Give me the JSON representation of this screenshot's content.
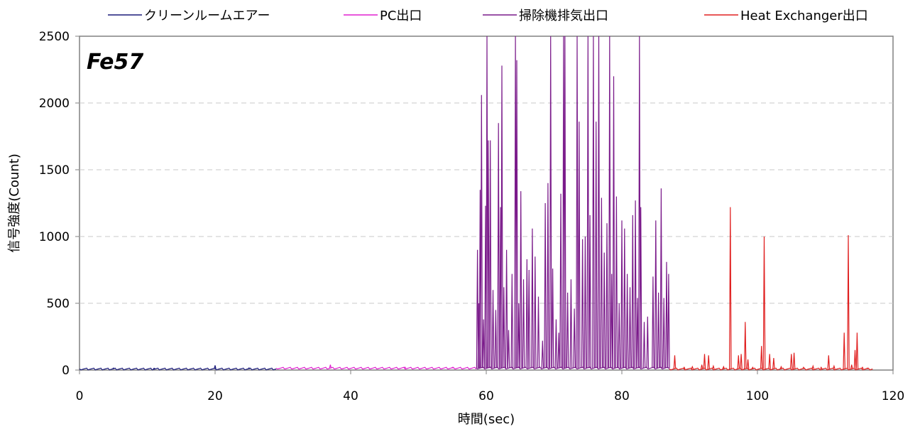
{
  "chart_data": {
    "type": "line",
    "title": "",
    "annotation": "Fe57",
    "xlabel": "時間(sec)",
    "ylabel": "信号強度(Count)",
    "xlim": [
      0,
      120
    ],
    "ylim": [
      0,
      2500
    ],
    "x_ticks": [
      "0",
      "20",
      "40",
      "60",
      "80",
      "100",
      "120"
    ],
    "y_ticks": [
      "0",
      "500",
      "1000",
      "1500",
      "2000",
      "2500"
    ],
    "grid": "horizontal dashed",
    "legend_position": "top",
    "series": [
      {
        "name": "クリーンルームエアー",
        "color": "#1a1a7a",
        "x_range": [
          0,
          29
        ],
        "baseline": 8,
        "spikes": [
          [
            20,
            35
          ],
          [
            5,
            15
          ],
          [
            11,
            14
          ],
          [
            25,
            16
          ]
        ]
      },
      {
        "name": "PC出口",
        "color": "#e020d0",
        "x_range": [
          29,
          58.5
        ],
        "baseline": 14,
        "spikes": [
          [
            37,
            40
          ],
          [
            48,
            22
          ],
          [
            55,
            20
          ]
        ]
      },
      {
        "name": "掃除機排気出口",
        "color": "#7a1a8a",
        "x_range": [
          58.5,
          87
        ],
        "baseline": 15,
        "spikes": [
          [
            58.7,
            900
          ],
          [
            58.9,
            500
          ],
          [
            59.1,
            1350
          ],
          [
            59.3,
            2060
          ],
          [
            59.6,
            380
          ],
          [
            59.9,
            1230
          ],
          [
            60.1,
            2500
          ],
          [
            60.3,
            1720
          ],
          [
            60.6,
            1720
          ],
          [
            61.0,
            600
          ],
          [
            61.4,
            450
          ],
          [
            61.8,
            1850
          ],
          [
            62.1,
            1220
          ],
          [
            62.3,
            2280
          ],
          [
            62.6,
            620
          ],
          [
            63.0,
            900
          ],
          [
            63.3,
            300
          ],
          [
            63.8,
            720
          ],
          [
            64.3,
            2500
          ],
          [
            64.5,
            2320
          ],
          [
            64.8,
            500
          ],
          [
            65.1,
            1340
          ],
          [
            65.5,
            680
          ],
          [
            66.0,
            830
          ],
          [
            66.3,
            750
          ],
          [
            66.8,
            1060
          ],
          [
            67.2,
            850
          ],
          [
            67.7,
            550
          ],
          [
            68.3,
            220
          ],
          [
            68.7,
            1250
          ],
          [
            69.1,
            1400
          ],
          [
            69.5,
            2500
          ],
          [
            69.8,
            760
          ],
          [
            70.3,
            380
          ],
          [
            70.7,
            280
          ],
          [
            71.0,
            1320
          ],
          [
            71.4,
            2500
          ],
          [
            71.6,
            2500
          ],
          [
            72.0,
            580
          ],
          [
            72.5,
            680
          ],
          [
            73.0,
            460
          ],
          [
            73.4,
            2500
          ],
          [
            73.7,
            1860
          ],
          [
            74.2,
            980
          ],
          [
            74.6,
            1000
          ],
          [
            75.0,
            2500
          ],
          [
            75.3,
            1160
          ],
          [
            75.8,
            2500
          ],
          [
            76.2,
            1860
          ],
          [
            76.6,
            2500
          ],
          [
            77.0,
            1290
          ],
          [
            77.4,
            880
          ],
          [
            77.8,
            1100
          ],
          [
            78.2,
            2500
          ],
          [
            78.5,
            720
          ],
          [
            78.8,
            2200
          ],
          [
            79.2,
            1300
          ],
          [
            79.6,
            500
          ],
          [
            80.0,
            1120
          ],
          [
            80.4,
            1060
          ],
          [
            80.8,
            720
          ],
          [
            81.2,
            620
          ],
          [
            81.6,
            1160
          ],
          [
            82.0,
            1270
          ],
          [
            82.3,
            540
          ],
          [
            82.6,
            2500
          ],
          [
            82.8,
            1220
          ],
          [
            83.3,
            360
          ],
          [
            83.8,
            400
          ],
          [
            84.6,
            700
          ],
          [
            85.0,
            1120
          ],
          [
            85.4,
            580
          ],
          [
            85.8,
            1360
          ],
          [
            86.2,
            540
          ],
          [
            86.6,
            810
          ],
          [
            86.9,
            720
          ]
        ]
      },
      {
        "name": "Heat Exchanger出口",
        "color": "#e02020",
        "x_range": [
          87,
          117
        ],
        "baseline": 8,
        "spikes": [
          [
            87.8,
            110
          ],
          [
            89.2,
            20
          ],
          [
            90.4,
            25
          ],
          [
            91.8,
            40
          ],
          [
            92.2,
            120
          ],
          [
            92.8,
            110
          ],
          [
            93.5,
            30
          ],
          [
            95.0,
            25
          ],
          [
            96.0,
            1220
          ],
          [
            97.2,
            110
          ],
          [
            97.6,
            120
          ],
          [
            98.2,
            360
          ],
          [
            98.6,
            80
          ],
          [
            99.3,
            20
          ],
          [
            100.6,
            180
          ],
          [
            101.0,
            1000
          ],
          [
            101.8,
            120
          ],
          [
            102.4,
            90
          ],
          [
            103.5,
            25
          ],
          [
            105.0,
            120
          ],
          [
            105.4,
            130
          ],
          [
            106.8,
            20
          ],
          [
            108.2,
            30
          ],
          [
            109.4,
            20
          ],
          [
            110.5,
            110
          ],
          [
            111.3,
            30
          ],
          [
            112.8,
            280
          ],
          [
            113.4,
            1010
          ],
          [
            113.9,
            40
          ],
          [
            114.4,
            150
          ],
          [
            114.7,
            280
          ],
          [
            115.5,
            20
          ],
          [
            116.2,
            15
          ]
        ]
      }
    ]
  }
}
